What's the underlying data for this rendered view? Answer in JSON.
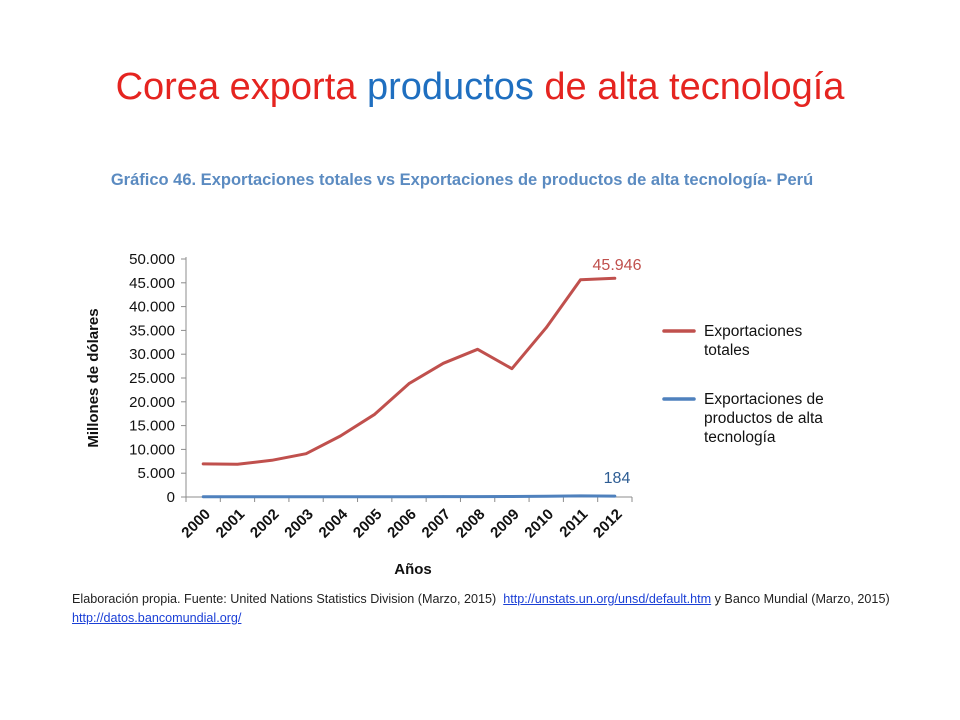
{
  "slide": {
    "title_parts": [
      "Corea exporta ",
      "productos",
      " de alta tecnología"
    ]
  },
  "colors": {
    "title_red": "#e52420",
    "title_blue": "#1f6fc0",
    "heading_blue": "#5b8bc1",
    "series_total": "#c0504d",
    "series_tech": "#4f81bd"
  },
  "chart_data": {
    "type": "line",
    "title": "Gráfico 46. Exportaciones totales vs Exportaciones de productos de alta tecnología- Perú",
    "xlabel": "Años",
    "ylabel": "Millones de dólares",
    "x": [
      "2000",
      "2001",
      "2002",
      "2003",
      "2004",
      "2005",
      "2006",
      "2007",
      "2008",
      "2009",
      "2010",
      "2011",
      "2012"
    ],
    "ylim": [
      0,
      50000
    ],
    "yticks": [
      0,
      5000,
      10000,
      15000,
      20000,
      25000,
      30000,
      35000,
      40000,
      45000,
      50000
    ],
    "ytick_labels": [
      "0",
      "5.000",
      "10.000",
      "15.000",
      "20.000",
      "25.000",
      "30.000",
      "35.000",
      "40.000",
      "45.000",
      "50.000"
    ],
    "grid": false,
    "legend_position": "right",
    "series": [
      {
        "name": "Exportaciones totales",
        "legend_lines": [
          "Exportaciones",
          "totales"
        ],
        "color": "#c0504d",
        "values": [
          6955,
          6880,
          7710,
          9090,
          12810,
          17370,
          23830,
          28090,
          31020,
          26960,
          35560,
          45640,
          45946
        ],
        "end_label": "45.946"
      },
      {
        "name": "Exportaciones de productos de alta tecnología",
        "legend_lines": [
          "Exportaciones de",
          "productos de alta",
          "tecnología"
        ],
        "color": "#4f81bd",
        "values": [
          50,
          45,
          50,
          55,
          60,
          65,
          70,
          80,
          90,
          100,
          150,
          230,
          184
        ],
        "end_label": "184"
      }
    ]
  },
  "source": {
    "prefix": "Elaboración propia. Fuente: United Nations Statistics Division (Marzo, 2015)",
    "link1": "http://unstats.un.org/unsd/default.htm",
    "middle": "y Banco Mundial (Marzo, 2015)",
    "link2": "http://datos.bancomundial.org/"
  }
}
